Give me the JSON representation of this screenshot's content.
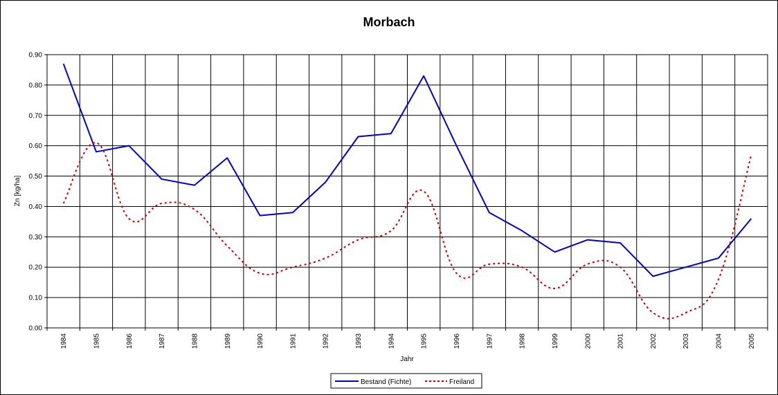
{
  "chart_data": {
    "type": "line",
    "title": "Morbach",
    "xlabel": "Jahr",
    "ylabel": "Zn [kg/ha]",
    "ylim": [
      0,
      0.9
    ],
    "yticks": [
      "0.00",
      "0.10",
      "0.20",
      "0.30",
      "0.40",
      "0.50",
      "0.60",
      "0.70",
      "0.80",
      "0.90"
    ],
    "grid": true,
    "legend_position": "bottom-center",
    "categories": [
      "1984",
      "1985",
      "1986",
      "1987",
      "1988",
      "1989",
      "1990",
      "1991",
      "1992",
      "1993",
      "1994",
      "1995",
      "1996",
      "1997",
      "1998",
      "1999",
      "2000",
      "2001",
      "2002",
      "2003",
      "2004",
      "2005"
    ],
    "series": [
      {
        "name": "Bestand (Fichte)",
        "color": "#0000cc",
        "style": "solid",
        "values": [
          0.87,
          0.58,
          0.6,
          0.49,
          0.47,
          0.56,
          0.37,
          0.38,
          0.48,
          0.63,
          0.64,
          0.83,
          0.6,
          0.38,
          0.32,
          0.25,
          0.29,
          0.28,
          0.17,
          0.2,
          0.23,
          0.36
        ]
      },
      {
        "name": "Freiland",
        "color": "#cc0000",
        "style": "dotted",
        "values": [
          0.41,
          0.61,
          0.36,
          0.41,
          0.39,
          0.27,
          0.18,
          0.2,
          0.23,
          0.29,
          0.32,
          0.45,
          0.18,
          0.21,
          0.2,
          0.13,
          0.21,
          0.2,
          0.05,
          0.05,
          0.16,
          0.57
        ]
      }
    ]
  }
}
